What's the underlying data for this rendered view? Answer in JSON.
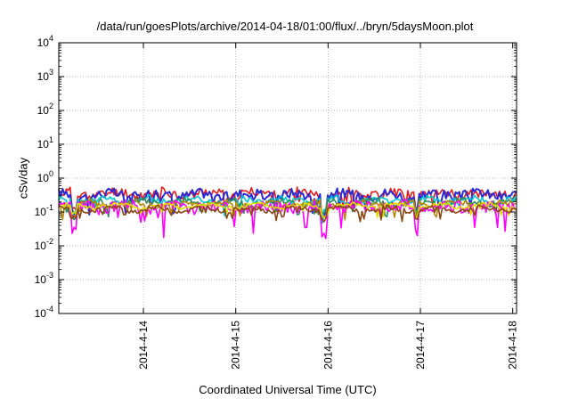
{
  "chart_data": {
    "type": "line",
    "title": "/data/run/goesPlots/archive/2014-04-18/01:00/flux/../bryn/5daysMoon.plot",
    "xlabel": "Coordinated Universal Time (UTC)",
    "ylabel": "cSv/day",
    "y_scale": "log",
    "ylim": [
      0.0001,
      10000
    ],
    "xlim": [
      "2014-04-13T02:00",
      "2014-04-18T01:00"
    ],
    "x_ticks": [
      "2014-4-14",
      "2014-4-15",
      "2014-4-16",
      "2014-4-17",
      "2014-4-18"
    ],
    "y_ticks": [
      {
        "base": "10",
        "exp": "-4"
      },
      {
        "base": "10",
        "exp": "-3"
      },
      {
        "base": "10",
        "exp": "-2"
      },
      {
        "base": "10",
        "exp": "-1"
      },
      {
        "base": "10",
        "exp": "0"
      },
      {
        "base": "10",
        "exp": "1"
      },
      {
        "base": "10",
        "exp": "2"
      },
      {
        "base": "10",
        "exp": "3"
      },
      {
        "base": "10",
        "exp": "4"
      }
    ],
    "grid": true,
    "legend": "none",
    "series": [
      {
        "color": "#e41a1c",
        "baseline": 0.35,
        "noise": 0.28,
        "dip": 0.5,
        "seed": 11
      },
      {
        "color": "#2b2bd6",
        "baseline": 0.32,
        "noise": 0.3,
        "dip": 0.5,
        "seed": 17
      },
      {
        "color": "#00c8d2",
        "baseline": 0.22,
        "noise": 0.2,
        "dip": 0.4,
        "seed": 23
      },
      {
        "color": "#2e8b57",
        "baseline": 0.19,
        "noise": 0.18,
        "dip": 0.4,
        "seed": 29
      },
      {
        "color": "#b8860b",
        "baseline": 0.17,
        "noise": 0.16,
        "dip": 0.4,
        "seed": 31
      },
      {
        "color": "#ff00ff",
        "baseline": 0.14,
        "noise": 0.35,
        "dip": 0.9,
        "seed": 37
      },
      {
        "color": "#e0e000",
        "baseline": 0.15,
        "noise": 0.12,
        "dip": 0.3,
        "seed": 41
      },
      {
        "color": "#8b4513",
        "baseline": 0.12,
        "noise": 0.14,
        "dip": 0.3,
        "seed": 43
      }
    ],
    "notable_dips": [
      {
        "x": "2014-04-15T23:00",
        "y": 0.05
      },
      {
        "x": "2014-04-16T23:00",
        "y": 0.05
      },
      {
        "x": "2014-04-13T06:00",
        "y": 0.07
      }
    ]
  }
}
